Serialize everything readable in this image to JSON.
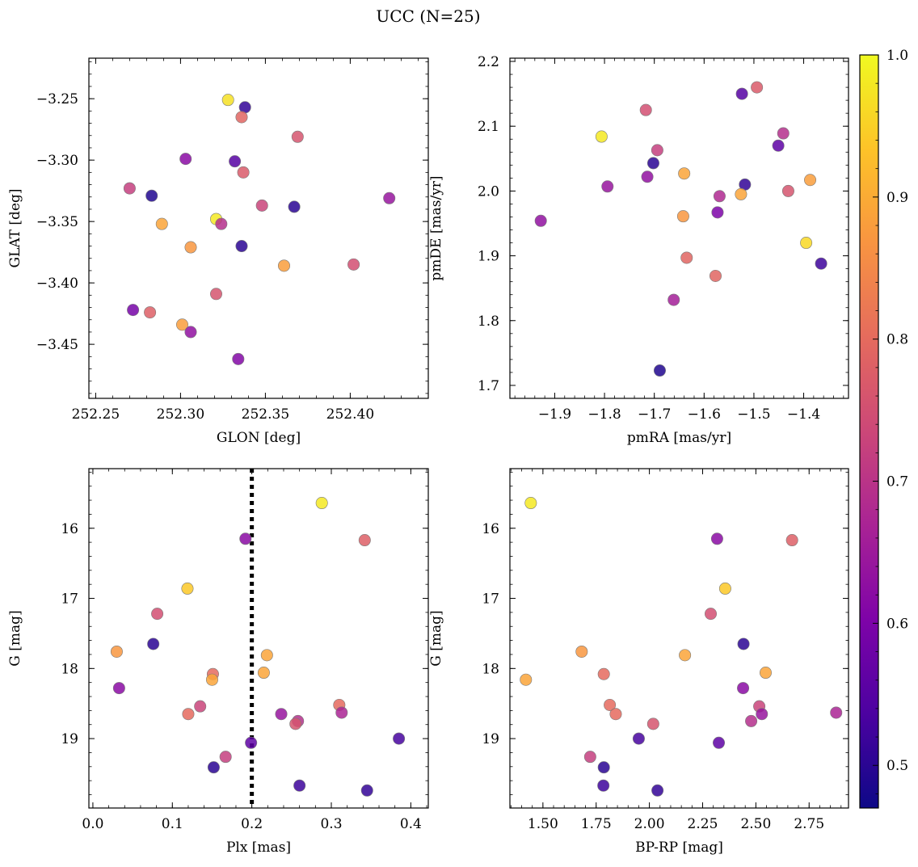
{
  "title": "UCC (N=25)",
  "colorbar": {
    "min": 0.47,
    "max": 1.0,
    "ticks": [
      0.5,
      0.6,
      0.7,
      0.8,
      0.9,
      1.0
    ],
    "tick_labels": [
      "0.5",
      "0.6",
      "0.7",
      "0.8",
      "0.9",
      "1.0"
    ],
    "colormap": "plasma"
  },
  "chart_data": [
    {
      "type": "scatter",
      "xlabel": "GLON [deg]",
      "ylabel": "GLAT [deg]",
      "xlim": [
        252.246,
        252.446
      ],
      "ylim": [
        -3.494,
        -3.217
      ],
      "xticks": [
        252.25,
        252.3,
        252.35,
        252.4
      ],
      "xtick_labels": [
        "252.25",
        "252.30",
        "252.35",
        "252.40"
      ],
      "yticks": [
        -3.45,
        -3.4,
        -3.35,
        -3.3,
        -3.25
      ],
      "ytick_labels": [
        "−3.45",
        "−3.40",
        "−3.35",
        "−3.30",
        "−3.25"
      ],
      "grid": false,
      "points": [
        {
          "x": 252.328,
          "y": -3.251,
          "c": 0.97
        },
        {
          "x": 252.338,
          "y": -3.257,
          "c": 0.51
        },
        {
          "x": 252.336,
          "y": -3.265,
          "c": 0.79
        },
        {
          "x": 252.369,
          "y": -3.281,
          "c": 0.76
        },
        {
          "x": 252.303,
          "y": -3.299,
          "c": 0.62
        },
        {
          "x": 252.332,
          "y": -3.301,
          "c": 0.55
        },
        {
          "x": 252.337,
          "y": -3.31,
          "c": 0.77
        },
        {
          "x": 252.27,
          "y": -3.323,
          "c": 0.72
        },
        {
          "x": 252.283,
          "y": -3.329,
          "c": 0.49
        },
        {
          "x": 252.423,
          "y": -3.331,
          "c": 0.64
        },
        {
          "x": 252.348,
          "y": -3.337,
          "c": 0.73
        },
        {
          "x": 252.367,
          "y": -3.338,
          "c": 0.5
        },
        {
          "x": 252.321,
          "y": -3.348,
          "c": 0.98
        },
        {
          "x": 252.324,
          "y": -3.352,
          "c": 0.69
        },
        {
          "x": 252.289,
          "y": -3.352,
          "c": 0.89
        },
        {
          "x": 252.306,
          "y": -3.371,
          "c": 0.87
        },
        {
          "x": 252.336,
          "y": -3.37,
          "c": 0.5
        },
        {
          "x": 252.361,
          "y": -3.386,
          "c": 0.88
        },
        {
          "x": 252.402,
          "y": -3.385,
          "c": 0.75
        },
        {
          "x": 252.321,
          "y": -3.409,
          "c": 0.76
        },
        {
          "x": 252.272,
          "y": -3.422,
          "c": 0.59
        },
        {
          "x": 252.282,
          "y": -3.424,
          "c": 0.78
        },
        {
          "x": 252.301,
          "y": -3.434,
          "c": 0.88
        },
        {
          "x": 252.306,
          "y": -3.44,
          "c": 0.63
        },
        {
          "x": 252.334,
          "y": -3.462,
          "c": 0.61
        }
      ]
    },
    {
      "type": "scatter",
      "xlabel": "pmRA [mas/yr]",
      "ylabel": "pmDE [mas/yr]",
      "xlim": [
        -1.99,
        -1.31
      ],
      "ylim": [
        1.68,
        2.205
      ],
      "xticks": [
        -1.9,
        -1.8,
        -1.7,
        -1.6,
        -1.5,
        -1.4
      ],
      "xtick_labels": [
        "−1.9",
        "−1.8",
        "−1.7",
        "−1.6",
        "−1.5",
        "−1.4"
      ],
      "yticks": [
        1.7,
        1.8,
        1.9,
        2.0,
        2.1,
        2.2
      ],
      "ytick_labels": [
        "1.7",
        "1.8",
        "1.9",
        "2.0",
        "2.1",
        "2.2"
      ],
      "grid": false,
      "points": [
        {
          "x": -1.494,
          "y": 2.16,
          "c": 0.77
        },
        {
          "x": -1.524,
          "y": 2.15,
          "c": 0.55
        },
        {
          "x": -1.717,
          "y": 2.125,
          "c": 0.75
        },
        {
          "x": -1.441,
          "y": 2.089,
          "c": 0.69
        },
        {
          "x": -1.806,
          "y": 2.084,
          "c": 0.98
        },
        {
          "x": -1.451,
          "y": 2.07,
          "c": 0.56
        },
        {
          "x": -1.694,
          "y": 2.063,
          "c": 0.72
        },
        {
          "x": -1.702,
          "y": 2.043,
          "c": 0.5
        },
        {
          "x": -1.64,
          "y": 2.027,
          "c": 0.89
        },
        {
          "x": -1.714,
          "y": 2.022,
          "c": 0.63
        },
        {
          "x": -1.387,
          "y": 2.017,
          "c": 0.88
        },
        {
          "x": -1.518,
          "y": 2.01,
          "c": 0.51
        },
        {
          "x": -1.794,
          "y": 2.007,
          "c": 0.64
        },
        {
          "x": -1.431,
          "y": 2.0,
          "c": 0.76
        },
        {
          "x": -1.526,
          "y": 1.995,
          "c": 0.89
        },
        {
          "x": -1.569,
          "y": 1.992,
          "c": 0.68
        },
        {
          "x": -1.573,
          "y": 1.967,
          "c": 0.6
        },
        {
          "x": -1.642,
          "y": 1.961,
          "c": 0.87
        },
        {
          "x": -1.928,
          "y": 1.954,
          "c": 0.63
        },
        {
          "x": -1.395,
          "y": 1.92,
          "c": 0.96
        },
        {
          "x": -1.365,
          "y": 1.888,
          "c": 0.52
        },
        {
          "x": -1.635,
          "y": 1.897,
          "c": 0.79
        },
        {
          "x": -1.577,
          "y": 1.869,
          "c": 0.79
        },
        {
          "x": -1.661,
          "y": 1.832,
          "c": 0.66
        },
        {
          "x": -1.689,
          "y": 1.723,
          "c": 0.49
        }
      ]
    },
    {
      "type": "scatter",
      "xlabel": "Plx [mas]",
      "ylabel": "G [mag]",
      "xlim": [
        -0.005,
        0.422
      ],
      "ylim": [
        19.99,
        15.15
      ],
      "xticks": [
        0.0,
        0.1,
        0.2,
        0.3,
        0.4
      ],
      "xtick_labels": [
        "0.0",
        "0.1",
        "0.2",
        "0.3",
        "0.4"
      ],
      "yticks": [
        16,
        17,
        18,
        19
      ],
      "ytick_labels": [
        "16",
        "17",
        "18",
        "19"
      ],
      "grid": false,
      "vline": {
        "x": 0.2,
        "style": "dotted"
      },
      "points": [
        {
          "x": 0.288,
          "y": 15.64,
          "c": 0.98
        },
        {
          "x": 0.192,
          "y": 16.15,
          "c": 0.62
        },
        {
          "x": 0.342,
          "y": 16.17,
          "c": 0.78
        },
        {
          "x": 0.119,
          "y": 16.86,
          "c": 0.94
        },
        {
          "x": 0.081,
          "y": 17.22,
          "c": 0.75
        },
        {
          "x": 0.076,
          "y": 17.65,
          "c": 0.5
        },
        {
          "x": 0.03,
          "y": 17.76,
          "c": 0.87
        },
        {
          "x": 0.219,
          "y": 17.81,
          "c": 0.89
        },
        {
          "x": 0.215,
          "y": 18.06,
          "c": 0.89
        },
        {
          "x": 0.151,
          "y": 18.08,
          "c": 0.8
        },
        {
          "x": 0.15,
          "y": 18.16,
          "c": 0.89
        },
        {
          "x": 0.033,
          "y": 18.28,
          "c": 0.62
        },
        {
          "x": 0.31,
          "y": 18.52,
          "c": 0.8
        },
        {
          "x": 0.135,
          "y": 18.54,
          "c": 0.73
        },
        {
          "x": 0.313,
          "y": 18.63,
          "c": 0.67
        },
        {
          "x": 0.12,
          "y": 18.65,
          "c": 0.8
        },
        {
          "x": 0.237,
          "y": 18.65,
          "c": 0.64
        },
        {
          "x": 0.258,
          "y": 18.75,
          "c": 0.69
        },
        {
          "x": 0.255,
          "y": 18.79,
          "c": 0.76
        },
        {
          "x": 0.385,
          "y": 19.0,
          "c": 0.53
        },
        {
          "x": 0.199,
          "y": 19.06,
          "c": 0.56
        },
        {
          "x": 0.167,
          "y": 19.26,
          "c": 0.72
        },
        {
          "x": 0.152,
          "y": 19.41,
          "c": 0.5
        },
        {
          "x": 0.26,
          "y": 19.67,
          "c": 0.52
        },
        {
          "x": 0.345,
          "y": 19.74,
          "c": 0.51
        }
      ]
    },
    {
      "type": "scatter",
      "xlabel": "BP-RP [mag]",
      "ylabel": "G [mag]",
      "xlim": [
        1.345,
        2.935
      ],
      "ylim": [
        19.99,
        15.15
      ],
      "xticks": [
        1.5,
        1.75,
        2.0,
        2.25,
        2.5,
        2.75
      ],
      "xtick_labels": [
        "1.50",
        "1.75",
        "2.00",
        "2.25",
        "2.50",
        "2.75"
      ],
      "yticks": [
        16,
        17,
        18,
        19
      ],
      "ytick_labels": [
        "16",
        "17",
        "18",
        "19"
      ],
      "grid": false,
      "points": [
        {
          "x": 1.443,
          "y": 15.64,
          "c": 0.98
        },
        {
          "x": 2.318,
          "y": 16.15,
          "c": 0.62
        },
        {
          "x": 2.67,
          "y": 16.17,
          "c": 0.78
        },
        {
          "x": 2.356,
          "y": 16.86,
          "c": 0.94
        },
        {
          "x": 2.288,
          "y": 17.22,
          "c": 0.75
        },
        {
          "x": 2.442,
          "y": 17.65,
          "c": 0.5
        },
        {
          "x": 1.682,
          "y": 17.76,
          "c": 0.87
        },
        {
          "x": 2.167,
          "y": 17.81,
          "c": 0.89
        },
        {
          "x": 2.546,
          "y": 18.06,
          "c": 0.89
        },
        {
          "x": 1.786,
          "y": 18.08,
          "c": 0.8
        },
        {
          "x": 1.42,
          "y": 18.16,
          "c": 0.89
        },
        {
          "x": 2.44,
          "y": 18.28,
          "c": 0.62
        },
        {
          "x": 1.814,
          "y": 18.52,
          "c": 0.8
        },
        {
          "x": 2.516,
          "y": 18.54,
          "c": 0.73
        },
        {
          "x": 2.877,
          "y": 18.63,
          "c": 0.67
        },
        {
          "x": 1.842,
          "y": 18.65,
          "c": 0.8
        },
        {
          "x": 2.528,
          "y": 18.65,
          "c": 0.64
        },
        {
          "x": 2.478,
          "y": 18.75,
          "c": 0.69
        },
        {
          "x": 2.018,
          "y": 18.79,
          "c": 0.76
        },
        {
          "x": 1.95,
          "y": 19.0,
          "c": 0.53
        },
        {
          "x": 2.326,
          "y": 19.06,
          "c": 0.56
        },
        {
          "x": 1.722,
          "y": 19.26,
          "c": 0.72
        },
        {
          "x": 1.786,
          "y": 19.41,
          "c": 0.5
        },
        {
          "x": 1.784,
          "y": 19.67,
          "c": 0.52
        },
        {
          "x": 2.038,
          "y": 19.74,
          "c": 0.51
        }
      ]
    }
  ]
}
